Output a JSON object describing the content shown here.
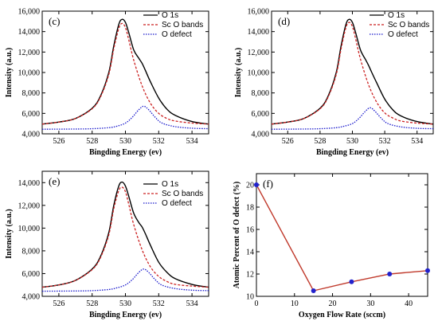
{
  "chart_data": [
    {
      "panel": "(c)",
      "type": "line",
      "xlabel": "Bingding Energy (ev)",
      "ylabel": "Intensity (a.u.)",
      "xlim": [
        525,
        535
      ],
      "ylim": [
        4000,
        16000
      ],
      "xticks": [
        "526",
        "528",
        "530",
        "532",
        "534"
      ],
      "yticks": [
        "4,000",
        "6,000",
        "8,000",
        "10,000",
        "12,000",
        "14,000",
        "16,000"
      ],
      "legend_position": "top-right",
      "series": [
        {
          "name": "O 1s",
          "color": "#000000",
          "style": "solid",
          "x": [
            525,
            526,
            527,
            528,
            528.5,
            529,
            529.3,
            529.6,
            529.8,
            530,
            530.2,
            530.5,
            530.8,
            531,
            531.2,
            531.5,
            532,
            532.5,
            533,
            534,
            535
          ],
          "y": [
            4950,
            5150,
            5500,
            6500,
            7700,
            10000,
            12600,
            14700,
            15200,
            14900,
            13900,
            12200,
            11400,
            10900,
            10200,
            9100,
            7500,
            6400,
            5800,
            5200,
            4950
          ]
        },
        {
          "name": "Sc O bands",
          "color": "#cc2222",
          "style": "dashed",
          "x": [
            525,
            526,
            527,
            528,
            528.5,
            529,
            529.3,
            529.6,
            529.8,
            530,
            530.2,
            530.5,
            531,
            531.5,
            532,
            532.5,
            533,
            534,
            535
          ],
          "y": [
            4950,
            5150,
            5500,
            6450,
            7600,
            9800,
            12300,
            14300,
            14800,
            14400,
            13200,
            11200,
            8700,
            7000,
            6000,
            5500,
            5250,
            5050,
            4950
          ]
        },
        {
          "name": "O defect",
          "color": "#1a1acc",
          "style": "dotted",
          "x": [
            525,
            527,
            528,
            529,
            529.5,
            530,
            530.4,
            530.8,
            531.1,
            531.4,
            531.8,
            532.2,
            533,
            534,
            535
          ],
          "y": [
            4450,
            4470,
            4500,
            4600,
            4750,
            5050,
            5600,
            6350,
            6700,
            6350,
            5600,
            5050,
            4700,
            4550,
            4500
          ]
        }
      ]
    },
    {
      "panel": "(d)",
      "type": "line",
      "xlabel": "Bingding Energy (ev)",
      "ylabel": "Intensity (a.u.)",
      "xlim": [
        525,
        535
      ],
      "ylim": [
        4000,
        16000
      ],
      "xticks": [
        "526",
        "528",
        "530",
        "532",
        "534"
      ],
      "yticks": [
        "4,000",
        "6,000",
        "8,000",
        "10,000",
        "12,000",
        "14,000",
        "16,000"
      ],
      "legend_position": "top-right",
      "series": [
        {
          "name": "O 1s",
          "color": "#000000",
          "style": "solid",
          "x": [
            525,
            526,
            527,
            528,
            528.5,
            529,
            529.3,
            529.6,
            529.8,
            530,
            530.2,
            530.5,
            530.8,
            531,
            531.2,
            531.5,
            532,
            532.5,
            533,
            534,
            535
          ],
          "y": [
            4950,
            5150,
            5500,
            6500,
            7700,
            10000,
            12600,
            14700,
            15200,
            14900,
            13900,
            12200,
            11300,
            10700,
            10000,
            9000,
            7400,
            6350,
            5750,
            5200,
            4950
          ]
        },
        {
          "name": "Sc O bands",
          "color": "#cc2222",
          "style": "dashed",
          "x": [
            525,
            526,
            527,
            528,
            528.5,
            529,
            529.3,
            529.6,
            529.8,
            530,
            530.2,
            530.5,
            531,
            531.5,
            532,
            532.5,
            533,
            534,
            535
          ],
          "y": [
            4950,
            5150,
            5500,
            6450,
            7600,
            9800,
            12300,
            14400,
            14900,
            14500,
            13300,
            11300,
            8800,
            7100,
            6050,
            5550,
            5250,
            5050,
            4950
          ]
        },
        {
          "name": "O defect",
          "color": "#1a1acc",
          "style": "dotted",
          "x": [
            525,
            527,
            528,
            529,
            529.5,
            530,
            530.4,
            530.8,
            531.1,
            531.4,
            531.8,
            532.2,
            533,
            534,
            535
          ],
          "y": [
            4450,
            4470,
            4500,
            4600,
            4750,
            5000,
            5500,
            6200,
            6550,
            6200,
            5500,
            5000,
            4680,
            4540,
            4500
          ]
        }
      ]
    },
    {
      "panel": "(e)",
      "type": "line",
      "xlabel": "Bingding Energy (ev)",
      "ylabel": "Intensity (a.u.)",
      "xlim": [
        525,
        535
      ],
      "ylim": [
        4000,
        15000
      ],
      "xticks": [
        "526",
        "528",
        "530",
        "532",
        "534"
      ],
      "yticks": [
        "4,000",
        "6,000",
        "8,000",
        "10,000",
        "12,000",
        "14,000"
      ],
      "legend_position": "top-right",
      "series": [
        {
          "name": "O 1s",
          "color": "#000000",
          "style": "solid",
          "x": [
            525,
            526,
            527,
            528,
            528.5,
            529,
            529.3,
            529.6,
            529.8,
            530,
            530.2,
            530.5,
            530.8,
            531,
            531.2,
            531.5,
            532,
            532.5,
            533,
            534,
            535
          ],
          "y": [
            4800,
            5000,
            5400,
            6400,
            7500,
            9600,
            12000,
            13700,
            14050,
            13700,
            12800,
            11300,
            10500,
            10100,
            9500,
            8500,
            7000,
            6100,
            5550,
            5050,
            4800
          ]
        },
        {
          "name": "Sc O bands",
          "color": "#cc2222",
          "style": "dashed",
          "x": [
            525,
            526,
            527,
            528,
            528.5,
            529,
            529.3,
            529.6,
            529.8,
            530,
            530.2,
            530.5,
            531,
            531.5,
            532,
            532.5,
            533,
            534,
            535
          ],
          "y": [
            4800,
            5000,
            5400,
            6350,
            7400,
            9400,
            11700,
            13300,
            13600,
            13200,
            12100,
            10300,
            8100,
            6600,
            5750,
            5300,
            5050,
            4900,
            4800
          ]
        },
        {
          "name": "O defect",
          "color": "#1a1acc",
          "style": "dotted",
          "x": [
            525,
            527,
            528,
            529,
            529.5,
            530,
            530.4,
            530.8,
            531.1,
            531.4,
            531.8,
            532.2,
            533,
            534,
            535
          ],
          "y": [
            4450,
            4470,
            4500,
            4600,
            4750,
            5000,
            5450,
            6100,
            6400,
            6100,
            5450,
            4980,
            4680,
            4540,
            4500
          ]
        }
      ]
    },
    {
      "panel": "(f)",
      "type": "line",
      "xlabel": "Oxygen Flow Rate (sccm)",
      "ylabel": "Atomic Percent of O defect   (%)",
      "xlim": [
        0,
        45
      ],
      "ylim": [
        10,
        21
      ],
      "xticks": [
        "0",
        "10",
        "20",
        "30",
        "40"
      ],
      "yticks": [
        "10",
        "12",
        "14",
        "16",
        "18",
        "20"
      ],
      "series": [
        {
          "color": "#c0392b",
          "marker_color": "#2222cc",
          "x": [
            0,
            15,
            25,
            35,
            45
          ],
          "y": [
            20.0,
            10.5,
            11.3,
            12.0,
            12.3
          ]
        }
      ]
    }
  ]
}
